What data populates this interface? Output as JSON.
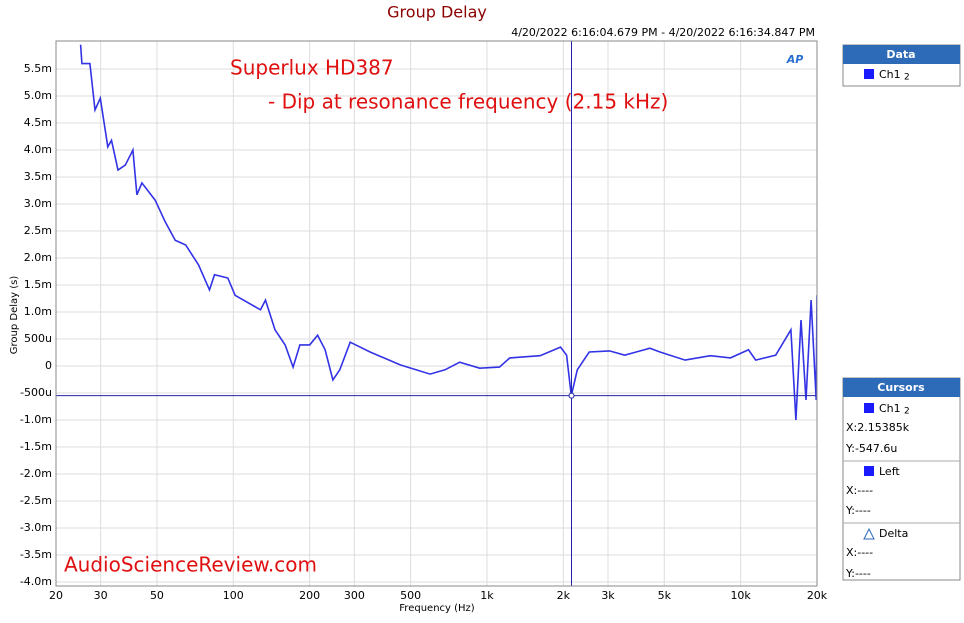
{
  "chart_data": {
    "type": "line",
    "title": "Group Delay",
    "subtitle": "4/20/2022 6:16:04.679 PM - 4/20/2022 6:16:34.847 PM",
    "annotations": [
      "Superlux HD387",
      "- Dip at resonance frequency (2.15 kHz)",
      "AudioScienceReview.com"
    ],
    "logo": "AP",
    "xlabel": "Frequency (Hz)",
    "ylabel": "Group Delay (s)",
    "xscale": "log",
    "grid": true,
    "xlim": [
      20,
      20000
    ],
    "ylim": [
      -0.004,
      0.006
    ],
    "xticks": [
      20,
      30,
      50,
      100,
      200,
      300,
      500,
      {
        "value": 1000,
        "label": "1k"
      },
      {
        "value": 2000,
        "label": "2k"
      },
      {
        "value": 3000,
        "label": "3k"
      },
      {
        "value": 5000,
        "label": "5k"
      },
      {
        "value": 10000,
        "label": "10k"
      },
      {
        "value": 20000,
        "label": "20k"
      }
    ],
    "yticks": [
      {
        "value": -0.004,
        "label": "-4.0m"
      },
      {
        "value": -0.0035,
        "label": "-3.5m"
      },
      {
        "value": -0.003,
        "label": "-3.0m"
      },
      {
        "value": -0.0025,
        "label": "-2.5m"
      },
      {
        "value": -0.002,
        "label": "-2.0m"
      },
      {
        "value": -0.0015,
        "label": "-1.5m"
      },
      {
        "value": -0.001,
        "label": "-1.0m"
      },
      {
        "value": -0.0005,
        "label": "-500u"
      },
      0,
      {
        "value": 0.0005,
        "label": "500u"
      },
      {
        "value": 0.001,
        "label": "1.0m"
      },
      {
        "value": 0.0015,
        "label": "1.5m"
      },
      {
        "value": 0.002,
        "label": "2.0m"
      },
      {
        "value": 0.0025,
        "label": "2.5m"
      },
      {
        "value": 0.003,
        "label": "3.0m"
      },
      {
        "value": 0.0035,
        "label": "3.5m"
      },
      {
        "value": 0.004,
        "label": "4.0m"
      },
      {
        "value": 0.0045,
        "label": "4.5m"
      },
      {
        "value": 0.005,
        "label": "5.0m"
      },
      {
        "value": 0.0055,
        "label": "5.5m"
      }
    ],
    "x": [
      25,
      25.3,
      27.2,
      28.5,
      29.9,
      32,
      33.1,
      35.1,
      37.5,
      40.2,
      41.7,
      43.6,
      49.2,
      53.9,
      59,
      64.9,
      73,
      80.6,
      84.3,
      95.1,
      101.6,
      128,
      134,
      146,
      160,
      172,
      183,
      200,
      215,
      230,
      247,
      263,
      289,
      346,
      455,
      597,
      683,
      781,
      935,
      1120,
      1230,
      1620,
      1950,
      2060,
      2150,
      2270,
      2530,
      3040,
      3490,
      4390,
      4810,
      6040,
      7590,
      9120,
      10740,
      11460,
      13750,
      15780,
      16520,
      17300,
      18100,
      18960,
      19860,
      20000
    ],
    "series": [
      {
        "name": "Ch1",
        "color": "#3333e6",
        "values": [
          0.00595,
          0.0056,
          0.0056,
          0.00474,
          0.00496,
          0.00406,
          0.00418,
          0.00363,
          0.00372,
          0.004,
          0.00317,
          0.00339,
          0.00307,
          0.00267,
          0.00233,
          0.00224,
          0.00187,
          0.00141,
          0.00169,
          0.00163,
          0.00131,
          0.00104,
          0.00122,
          0.00067,
          0.00039,
          -2e-05,
          0.00039,
          0.00039,
          0.00057,
          0.0003,
          -0.00026,
          -7e-05,
          0.00044,
          0.00026,
          2e-05,
          -0.00015,
          -7e-05,
          7e-05,
          -4e-05,
          -2e-05,
          0.00015,
          0.00019,
          0.00035,
          0.0002,
          -0.00055,
          -7e-05,
          0.00026,
          0.00028,
          0.0002,
          0.00033,
          0.00026,
          0.00011,
          0.00019,
          0.00015,
          0.0003,
          0.00011,
          0.0002,
          0.00067,
          -0.001,
          0.00085,
          -0.00063,
          0.00122,
          -0.00063,
          0.00131
        ]
      }
    ],
    "cursor": {
      "x": {
        "value": 2153.85,
        "label": "X:2.15385k"
      },
      "y": {
        "value": -0.0005476,
        "label": "Y:-547.6u"
      }
    }
  },
  "panel": {
    "data_title": "Data",
    "data_item": "Ch1",
    "data_sub": "2",
    "cursors_title": "Cursors",
    "cursor_item": "Ch1",
    "cursor_sub": "2",
    "left": "Left",
    "left_x": "X:----",
    "left_y": "Y:----",
    "delta": "Delta",
    "delta_x": "X:----",
    "delta_y": "Y:----"
  }
}
